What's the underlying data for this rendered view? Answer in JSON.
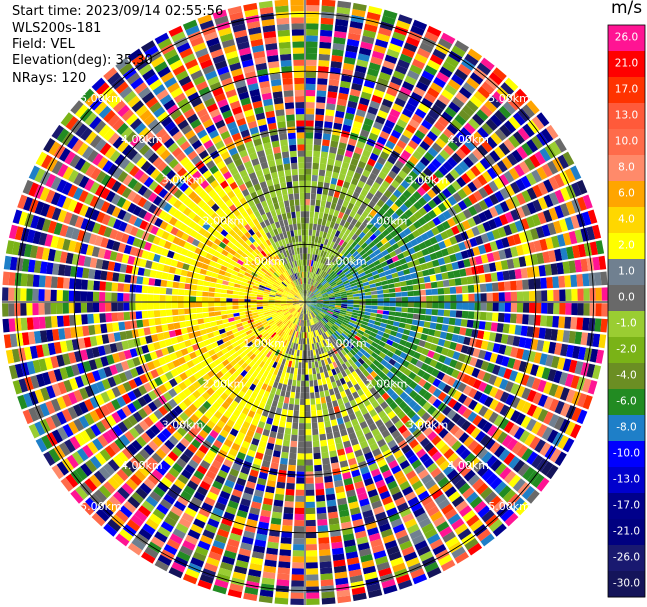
{
  "header": {
    "start_time": "Start time: 2023/09/14 02:55:56",
    "instrument": "WLS200s-181",
    "field": "Field: VEL",
    "elevation": "Elevation(deg): 35.30",
    "nrays": "NRays: 120"
  },
  "chart_data": {
    "type": "heatmap",
    "projection": "polar-ppi",
    "range_rings": [
      {
        "value": 1.0,
        "label": "1.00km"
      },
      {
        "value": 2.0,
        "label": "2.00km"
      },
      {
        "value": 3.0,
        "label": "3.00km"
      },
      {
        "value": 4.0,
        "label": "4.00km"
      },
      {
        "value": 5.0,
        "label": "5.00km"
      }
    ],
    "max_range_km": 5.25,
    "num_rays": 120,
    "colorbar": {
      "unit": "m/s",
      "ticks": [
        {
          "label": "26.0",
          "color": "#ff1493"
        },
        {
          "label": "21.0",
          "color": "#ff0000"
        },
        {
          "label": "17.0",
          "color": "#ff3300"
        },
        {
          "label": "13.0",
          "color": "#ff5a3a"
        },
        {
          "label": "10.0",
          "color": "#ff6b4a"
        },
        {
          "label": "8.0",
          "color": "#ff8a6a"
        },
        {
          "label": "6.0",
          "color": "#ffa500"
        },
        {
          "label": "4.0",
          "color": "#ffd700"
        },
        {
          "label": "2.0",
          "color": "#ffff00"
        },
        {
          "label": "1.0",
          "color": "#708090"
        },
        {
          "label": "0.0",
          "color": "#696969"
        },
        {
          "label": "-1.0",
          "color": "#9acd32"
        },
        {
          "label": "-2.0",
          "color": "#7ab317"
        },
        {
          "label": "-4.0",
          "color": "#6b8e23"
        },
        {
          "label": "-6.0",
          "color": "#228b22"
        },
        {
          "label": "-8.0",
          "color": "#1e7fc8"
        },
        {
          "label": "-10.0",
          "color": "#0000ff"
        },
        {
          "label": "-13.0",
          "color": "#0000cd"
        },
        {
          "label": "-17.0",
          "color": "#00008b"
        },
        {
          "label": "-21.0",
          "color": "#000080"
        },
        {
          "label": "-26.0",
          "color": "#191970"
        },
        {
          "label": "-30.0",
          "color": "#14145a"
        }
      ]
    }
  }
}
